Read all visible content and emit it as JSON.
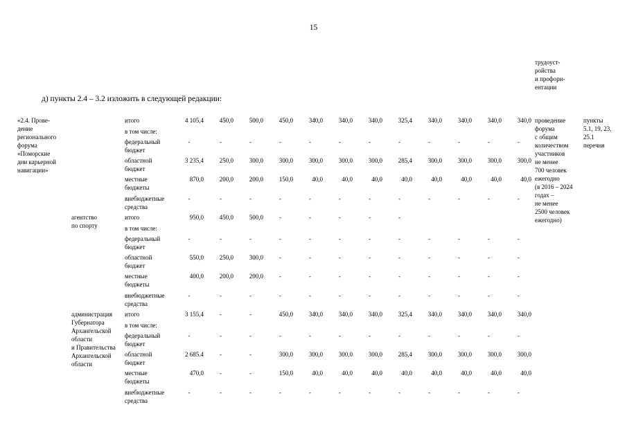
{
  "page": {
    "number": "15",
    "heading": "д) пункты 2.4 – 3.2 изложить в следующей редакции:"
  },
  "carryover_note": {
    "lines": [
      "трудоуст-",
      "ройства",
      "и профори-",
      "ентации"
    ]
  },
  "table": {
    "measure_name_lines": [
      "«2.4. Прове-",
      "дение",
      "регионального",
      "форума",
      "«Поморские",
      "дни карьерной",
      "навигации»"
    ],
    "expected_results_lines": [
      "проведение",
      "форума",
      "с общим",
      "количеством",
      "участников",
      "не менее",
      "700 человек",
      "ежегодно",
      "(в 2016 – 2024",
      "годах –",
      "не менее",
      "2500 человек",
      "ежегодно)"
    ],
    "reference_lines": [
      "пункты",
      "5.1, 19, 23,",
      "25.1",
      "перечня"
    ],
    "blocks": [
      {
        "executor_lines": [],
        "rows": [
          {
            "label_lines": [
              "итого"
            ],
            "values": [
              "4 105,4",
              "450,0",
              "500,0",
              "450,0",
              "340,0",
              "340,0",
              "340,0",
              "325,4",
              "340,0",
              "340,0",
              "340,0",
              "340,0"
            ]
          },
          {
            "label_lines": [
              "в том числе:"
            ],
            "values": []
          },
          {
            "label_lines": [
              "федеральный",
              "бюджет"
            ],
            "values": [
              "-",
              "-",
              "-",
              "-",
              "-",
              "-",
              "-",
              "-",
              "-",
              "-",
              "-",
              "-"
            ]
          },
          {
            "label_lines": [
              "областной",
              "бюджет"
            ],
            "values": [
              "3 235,4",
              "250,0",
              "300,0",
              "300,0",
              "300,0",
              "300,0",
              "300,0",
              "285,4",
              "300,0",
              "300,0",
              "300,0",
              "300,0"
            ]
          },
          {
            "label_lines": [
              "местные",
              "бюджеты"
            ],
            "values": [
              "870,0",
              "200,0",
              "200,0",
              "150,0",
              "40,0",
              "40,0",
              "40,0",
              "40,0",
              "40,0",
              "40,0",
              "40,0",
              "40,0"
            ]
          },
          {
            "label_lines": [
              "внебюджетные",
              "средства"
            ],
            "values": [
              "-",
              "-",
              "-",
              "-",
              "-",
              "-",
              "-",
              "-",
              "-",
              "-",
              "-",
              "-"
            ]
          }
        ]
      },
      {
        "executor_lines": [
          "агентство",
          "по спорту"
        ],
        "rows": [
          {
            "label_lines": [
              "итого"
            ],
            "values": [
              "950,0",
              "450,0",
              "500,0",
              "-",
              "-",
              "-",
              "-",
              "-",
              "",
              "",
              "",
              ""
            ]
          },
          {
            "label_lines": [
              "в том числе:"
            ],
            "values": []
          },
          {
            "label_lines": [
              "федеральный",
              "бюджет"
            ],
            "values": [
              "-",
              "-",
              "-",
              "-",
              "-",
              "-",
              "-",
              "-",
              "-",
              "-",
              "-",
              "-"
            ]
          },
          {
            "label_lines": [
              "областной",
              "бюджет"
            ],
            "values": [
              "550,0",
              "250,0",
              "300,0",
              "-",
              "-",
              "-",
              "-",
              "-",
              "-",
              "-",
              "-",
              "-"
            ]
          },
          {
            "label_lines": [
              "местные",
              "бюджеты"
            ],
            "values": [
              "400,0",
              "200,0",
              "200,0",
              "-",
              "-",
              "-",
              "-",
              "-",
              "-",
              "-",
              "-",
              "-"
            ]
          },
          {
            "label_lines": [
              "внебюджетные",
              "средства"
            ],
            "values": [
              "-",
              "-",
              "-",
              "-",
              "-",
              "-",
              "-",
              "-",
              "-",
              "-",
              "-",
              "-"
            ]
          }
        ]
      },
      {
        "executor_lines": [
          "администрация",
          "Губернатора",
          "Архангельской",
          "области",
          "и Правительства",
          "Архангельской",
          "области"
        ],
        "rows": [
          {
            "label_lines": [
              "итого"
            ],
            "values": [
              "3 155,4",
              "-",
              "-",
              "450,0",
              "340,0",
              "340,0",
              "340,0",
              "325,4",
              "340,0",
              "340,0",
              "340,0",
              "340,0"
            ]
          },
          {
            "label_lines": [
              "в том числе:"
            ],
            "values": []
          },
          {
            "label_lines": [
              "федеральный",
              "бюджет"
            ],
            "values": [
              "-",
              "-",
              "-",
              "-",
              "-",
              "-",
              "-",
              "-",
              "-",
              "-",
              "-",
              "-"
            ]
          },
          {
            "label_lines": [
              "областной",
              "бюджет"
            ],
            "values": [
              "2 685.4",
              "-",
              "-",
              "300,0",
              "300,0",
              "300,0",
              "300,0",
              "285,4",
              "300,0",
              "300,0",
              "300,0",
              "300,0"
            ]
          },
          {
            "label_lines": [
              "местные",
              "бюджеты"
            ],
            "values": [
              "470,0",
              "-",
              "-",
              "150,0",
              "40,0",
              "40,0",
              "40,0",
              "40,0",
              "40,0",
              "40,0",
              "40,0",
              "40,0"
            ]
          },
          {
            "label_lines": [
              "внебюджетные",
              "средства"
            ],
            "values": [
              "-",
              "-",
              "-",
              "-",
              "-",
              "-",
              "-",
              "-",
              "-",
              "-",
              "-",
              "-"
            ]
          }
        ]
      }
    ]
  }
}
